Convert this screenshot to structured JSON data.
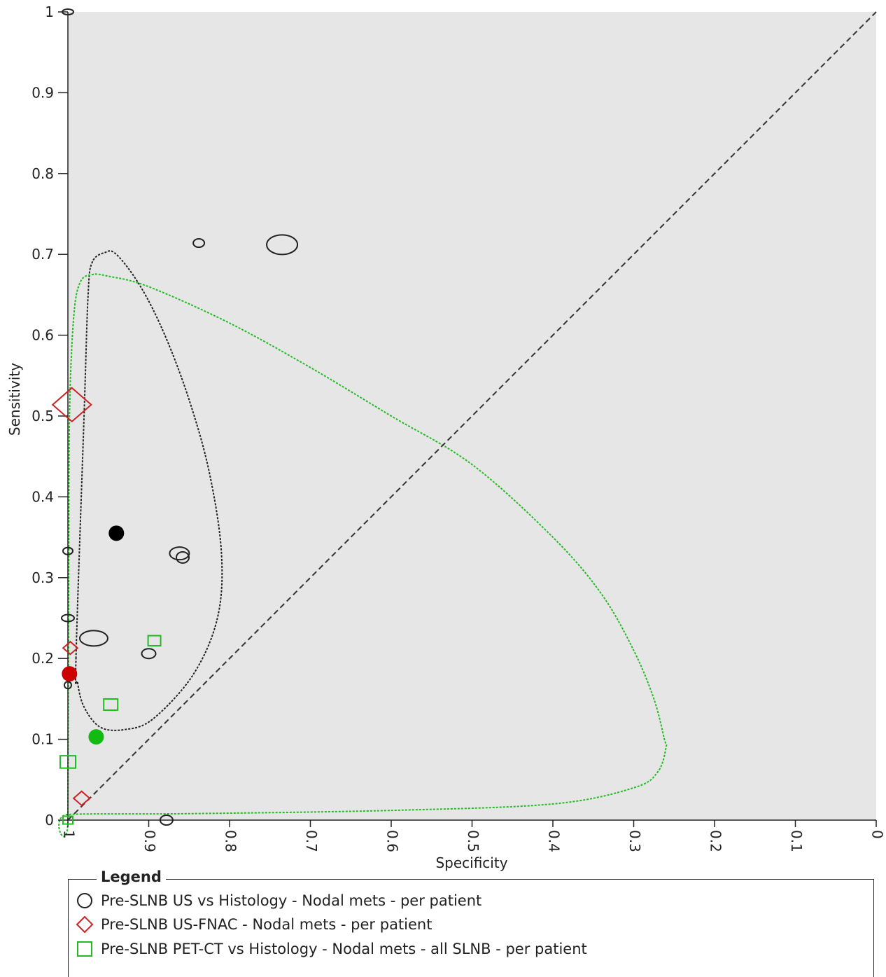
{
  "chart_data": {
    "type": "scatter",
    "xlabel": "Specificity",
    "ylabel": "Sensitivity",
    "xlim": [
      1,
      0
    ],
    "ylim": [
      0,
      1
    ],
    "x_ticks": [
      "1",
      "0.9",
      "0.8",
      "0.7",
      "0.6",
      "0.5",
      "0.4",
      "0.3",
      "0.2",
      "0.1",
      "0"
    ],
    "y_ticks": [
      "0",
      "0.1",
      "0.2",
      "0.3",
      "0.4",
      "0.5",
      "0.6",
      "0.7",
      "0.8",
      "0.9",
      "1"
    ],
    "background": "#e6e6e6",
    "diagonal_reference": true,
    "legend_title": "Legend",
    "legend_placement": "bottom",
    "series": [
      {
        "name": "Pre-SLNB US vs Histology - Nodal mets - per patient",
        "marker": "ellipse",
        "color": "#222222",
        "points": [
          {
            "spec": 1.0,
            "sens": 1.0,
            "rx": 8,
            "ry": 4
          },
          {
            "spec": 0.838,
            "sens": 0.714,
            "rx": 8,
            "ry": 6
          },
          {
            "spec": 0.735,
            "sens": 0.712,
            "rx": 22,
            "ry": 14
          },
          {
            "spec": 0.862,
            "sens": 0.33,
            "rx": 14,
            "ry": 9
          },
          {
            "spec": 0.858,
            "sens": 0.325,
            "rx": 9,
            "ry": 8
          },
          {
            "spec": 1.0,
            "sens": 0.333,
            "rx": 7,
            "ry": 5
          },
          {
            "spec": 1.0,
            "sens": 0.25,
            "rx": 9,
            "ry": 5
          },
          {
            "spec": 0.968,
            "sens": 0.225,
            "rx": 20,
            "ry": 11
          },
          {
            "spec": 0.9,
            "sens": 0.206,
            "rx": 10,
            "ry": 7
          },
          {
            "spec": 1.0,
            "sens": 0.167,
            "rx": 5,
            "ry": 5
          },
          {
            "spec": 0.878,
            "sens": 0.0,
            "rx": 9,
            "ry": 7
          }
        ],
        "summary_point": {
          "spec": 0.94,
          "sens": 0.355
        },
        "region": [
          [
            0.99,
            0.2
          ],
          [
            0.98,
            0.5
          ],
          [
            0.975,
            0.65
          ],
          [
            0.97,
            0.69
          ],
          [
            0.955,
            0.702
          ],
          [
            0.94,
            0.7
          ],
          [
            0.91,
            0.66
          ],
          [
            0.88,
            0.6
          ],
          [
            0.85,
            0.52
          ],
          [
            0.825,
            0.43
          ],
          [
            0.81,
            0.33
          ],
          [
            0.815,
            0.25
          ],
          [
            0.845,
            0.18
          ],
          [
            0.895,
            0.125
          ],
          [
            0.93,
            0.112
          ],
          [
            0.96,
            0.115
          ],
          [
            0.98,
            0.14
          ],
          [
            0.988,
            0.17
          ]
        ]
      },
      {
        "name": "Pre-SLNB US-FNAC - Nodal mets - per patient",
        "marker": "diamond",
        "color": "#cc2222",
        "points": [
          {
            "spec": 0.995,
            "sens": 0.514,
            "size": 24
          },
          {
            "spec": 0.997,
            "sens": 0.213,
            "size": 9
          },
          {
            "spec": 0.983,
            "sens": 0.027,
            "size": 10
          }
        ],
        "summary_point": {
          "spec": 0.998,
          "sens": 0.181
        }
      },
      {
        "name": "Pre-SLNB PET-CT vs Histology - Nodal mets - all SLNB - per patient",
        "marker": "square",
        "color": "#22bb22",
        "points": [
          {
            "spec": 0.893,
            "sens": 0.222,
            "size": 9
          },
          {
            "spec": 0.947,
            "sens": 0.143,
            "size": 10
          },
          {
            "spec": 1.0,
            "sens": 0.072,
            "size": 11
          },
          {
            "spec": 1.0,
            "sens": 0.0,
            "size": 7
          }
        ],
        "summary_point": {
          "spec": 0.965,
          "sens": 0.103
        },
        "region": [
          [
            1.0,
            0.0
          ],
          [
            0.999,
            0.3
          ],
          [
            0.998,
            0.5
          ],
          [
            0.993,
            0.62
          ],
          [
            0.985,
            0.665
          ],
          [
            0.97,
            0.675
          ],
          [
            0.95,
            0.673
          ],
          [
            0.9,
            0.66
          ],
          [
            0.8,
            0.615
          ],
          [
            0.7,
            0.56
          ],
          [
            0.6,
            0.5
          ],
          [
            0.5,
            0.44
          ],
          [
            0.4,
            0.35
          ],
          [
            0.34,
            0.28
          ],
          [
            0.3,
            0.21
          ],
          [
            0.275,
            0.15
          ],
          [
            0.262,
            0.1
          ],
          [
            0.26,
            0.09
          ],
          [
            0.27,
            0.06
          ],
          [
            0.3,
            0.04
          ],
          [
            0.4,
            0.02
          ],
          [
            0.6,
            0.012
          ],
          [
            0.85,
            0.008
          ],
          [
            1.0,
            0.007
          ]
        ]
      }
    ]
  }
}
